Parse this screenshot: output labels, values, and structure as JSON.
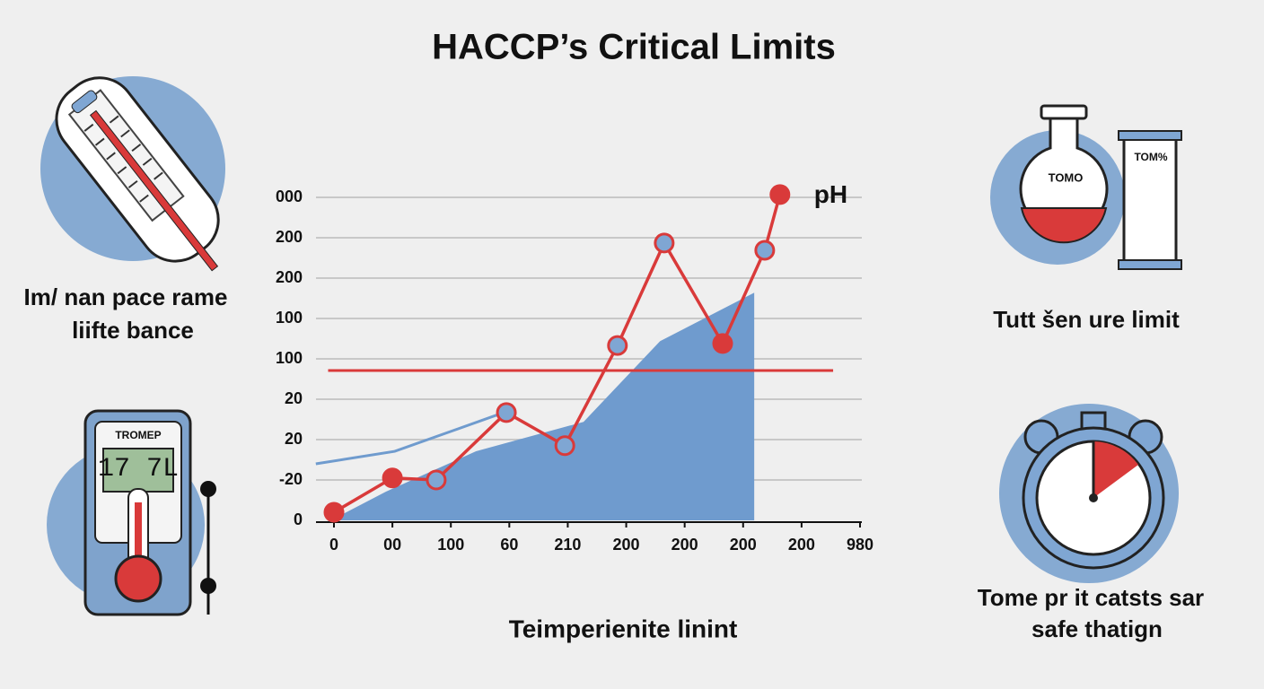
{
  "title": "HACCP’s Critical Limits",
  "panels": [
    {
      "lines": [
        "Im/ nan pace rame",
        "liifte bance"
      ],
      "device_label": "TROMEP",
      "display": "17 7L"
    },
    {
      "lines": [
        "Tutt šen ure limit"
      ],
      "flask_label": "TOMO",
      "tube_label": "TOM%"
    },
    {
      "lines": [
        "Tome pr it catsts sar",
        "safe thatign"
      ]
    }
  ],
  "chart_data": {
    "type": "line",
    "xlabel": "Teimperienite linint",
    "xlim": [
      0,
      9
    ],
    "ylim": [
      0,
      8
    ],
    "xticks": [
      0,
      {
        "value": 1,
        "label": "00"
      },
      {
        "value": 2,
        "label": "100"
      },
      {
        "value": 3,
        "label": "60"
      },
      {
        "value": 4,
        "label": "210"
      },
      {
        "value": 5,
        "label": "200"
      },
      {
        "value": 6,
        "label": "200"
      },
      {
        "value": 7,
        "label": "200"
      },
      {
        "value": 8,
        "label": "200"
      },
      {
        "value": 9,
        "label": "980"
      }
    ],
    "yticks": [
      0,
      {
        "value": 1,
        "label": "-20"
      },
      {
        "value": 2,
        "label": "20"
      },
      {
        "value": 3,
        "label": "20"
      },
      {
        "value": 4,
        "label": "100"
      },
      {
        "value": 5,
        "label": "100"
      },
      {
        "value": 6,
        "label": "200"
      },
      {
        "value": 7,
        "label": "200"
      },
      {
        "value": 8,
        "label": "000"
      }
    ],
    "grid": true,
    "series": [
      {
        "name": "pH",
        "type": "line",
        "color": "#d93a3a",
        "x": [
          0,
          1,
          1.75,
          2.95,
          3.95,
          4.85,
          5.65,
          6.65,
          7.37,
          7.63
        ],
        "values": [
          0.2,
          1.05,
          1,
          2.67,
          1.85,
          4.33,
          6.87,
          4.38,
          6.69,
          8.07
        ],
        "marker_colors": [
          "#d93a3a",
          "#d93a3a",
          "#7fa6d3",
          "#7fa6d3",
          "#7fa6d3",
          "#7fa6d3",
          "#7fa6d3",
          "#d93a3a",
          "#7fa6d3",
          "#d93a3a"
        ]
      },
      {
        "type": "line",
        "color": "#6f9bce",
        "x": [
          -0.31,
          1.04,
          2.81
        ],
        "values": [
          1.4,
          1.71,
          2.62
        ]
      },
      {
        "type": "area",
        "color": "#6f9bce",
        "x": [
          0,
          0.89,
          2.43,
          4.27,
          5.58,
          7.19
        ],
        "values": [
          0.04,
          0.71,
          1.71,
          2.44,
          4.44,
          5.64
        ]
      }
    ],
    "reference_lines": [
      {
        "value": 3.71,
        "color": "#d93a3a",
        "x": [
          -0.1,
          8.54
        ]
      }
    ]
  }
}
